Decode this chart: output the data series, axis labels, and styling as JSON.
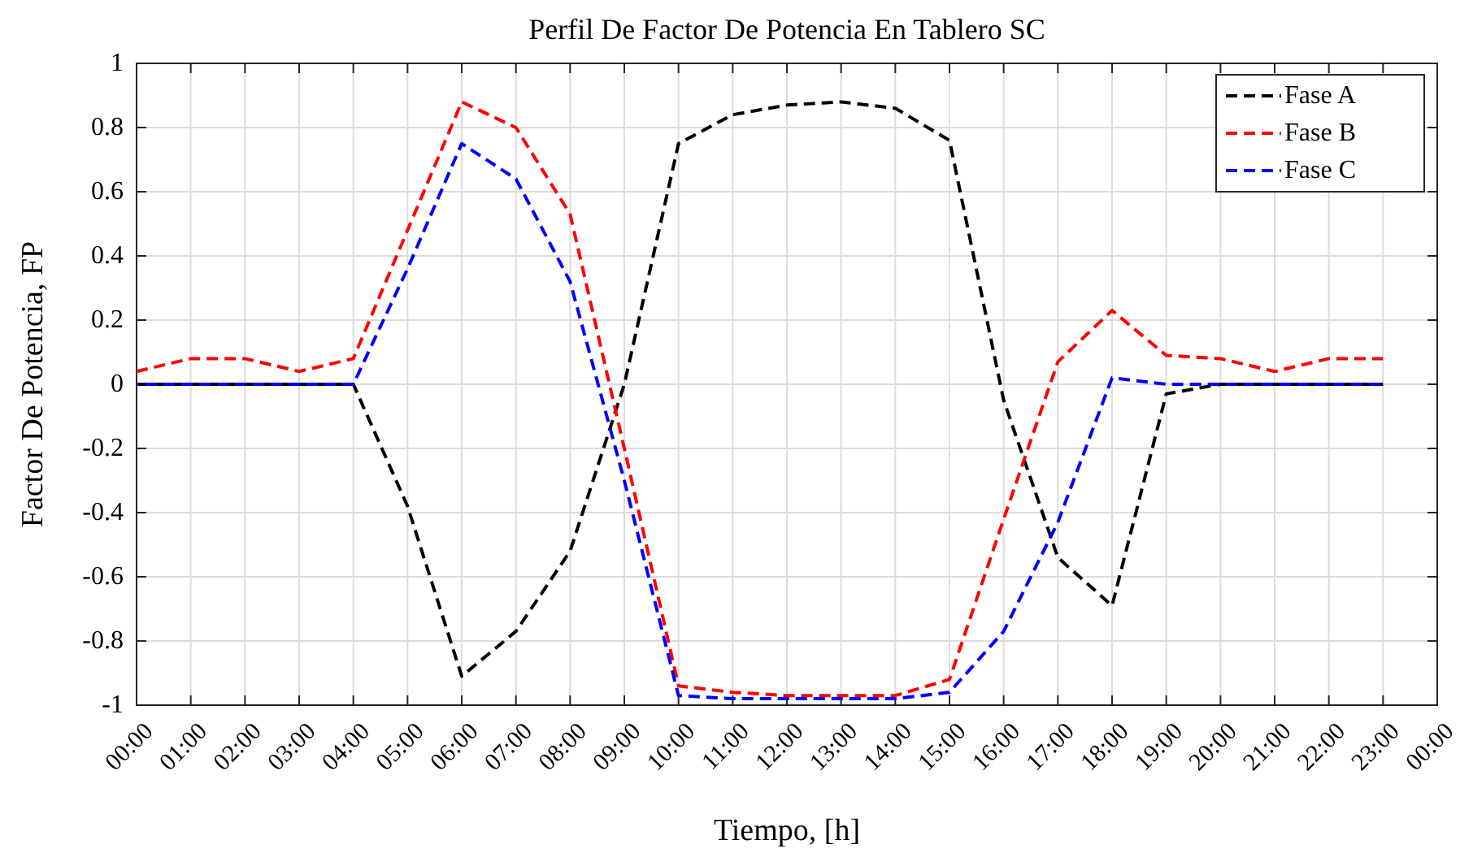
{
  "chart_data": {
    "type": "line",
    "title": "Perfil De Factor De Potencia En Tablero SC",
    "xlabel": "Tiempo, [h]",
    "ylabel": "Factor De Potencia, FP",
    "x": [
      0,
      1,
      2,
      3,
      4,
      5,
      6,
      7,
      8,
      9,
      10,
      11,
      12,
      13,
      14,
      15,
      16,
      17,
      18,
      19,
      20,
      21,
      22,
      23
    ],
    "series": [
      {
        "name": "Fase A",
        "color": "#000000",
        "values": [
          0,
          0,
          0,
          0,
          0,
          -0.38,
          -0.91,
          -0.77,
          -0.52,
          0.0,
          0.75,
          0.84,
          0.87,
          0.88,
          0.86,
          0.76,
          -0.05,
          -0.54,
          -0.69,
          -0.03,
          0,
          0,
          0,
          0
        ]
      },
      {
        "name": "Fase B",
        "color": "#ff0000",
        "values": [
          0.04,
          0.08,
          0.08,
          0.04,
          0.08,
          0.48,
          0.88,
          0.8,
          0.53,
          -0.2,
          -0.94,
          -0.96,
          -0.97,
          -0.97,
          -0.97,
          -0.92,
          -0.42,
          0.07,
          0.23,
          0.09,
          0.08,
          0.04,
          0.08,
          0.08
        ]
      },
      {
        "name": "Fase C",
        "color": "#0000ff",
        "values": [
          0,
          0,
          0,
          0,
          0,
          0.36,
          0.75,
          0.64,
          0.32,
          -0.3,
          -0.97,
          -0.98,
          -0.98,
          -0.98,
          -0.98,
          -0.96,
          -0.77,
          -0.43,
          0.02,
          0,
          0,
          0,
          0,
          0
        ]
      }
    ],
    "xlim": [
      0,
      24
    ],
    "xticks": [
      {
        "value": 0,
        "label": "00:00"
      },
      {
        "value": 1,
        "label": "01:00"
      },
      {
        "value": 2,
        "label": "02:00"
      },
      {
        "value": 3,
        "label": "03:00"
      },
      {
        "value": 4,
        "label": "04:00"
      },
      {
        "value": 5,
        "label": "05:00"
      },
      {
        "value": 6,
        "label": "06:00"
      },
      {
        "value": 7,
        "label": "07:00"
      },
      {
        "value": 8,
        "label": "08:00"
      },
      {
        "value": 9,
        "label": "09:00"
      },
      {
        "value": 10,
        "label": "10:00"
      },
      {
        "value": 11,
        "label": "11:00"
      },
      {
        "value": 12,
        "label": "12:00"
      },
      {
        "value": 13,
        "label": "13:00"
      },
      {
        "value": 14,
        "label": "14:00"
      },
      {
        "value": 15,
        "label": "15:00"
      },
      {
        "value": 16,
        "label": "16:00"
      },
      {
        "value": 17,
        "label": "17:00"
      },
      {
        "value": 18,
        "label": "18:00"
      },
      {
        "value": 19,
        "label": "19:00"
      },
      {
        "value": 20,
        "label": "20:00"
      },
      {
        "value": 21,
        "label": "21:00"
      },
      {
        "value": 22,
        "label": "22:00"
      },
      {
        "value": 23,
        "label": "23:00"
      },
      {
        "value": 24,
        "label": "00:00"
      }
    ],
    "ylim": [
      -1,
      1
    ],
    "yticks": [
      -1,
      -0.8,
      -0.6,
      -0.4,
      -0.2,
      0,
      0.2,
      0.4,
      0.6,
      0.8,
      1
    ],
    "grid": true,
    "legend": "top right",
    "line_style": "dashed",
    "marker": "none"
  }
}
